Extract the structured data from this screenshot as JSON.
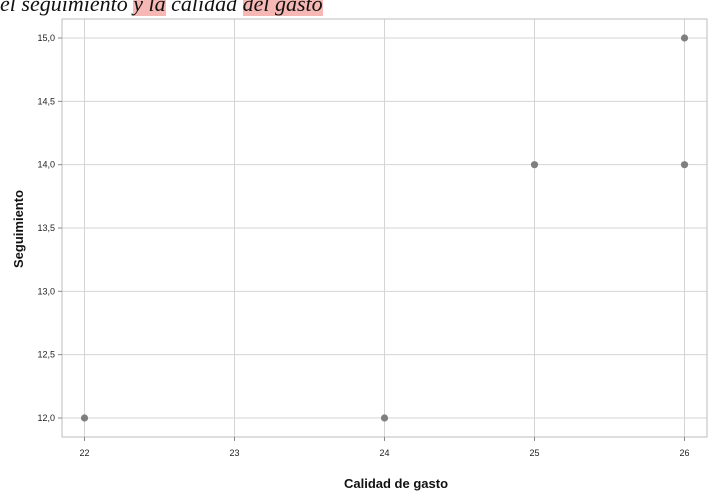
{
  "caption": {
    "part1": "el seguimiento ",
    "part2": "y la",
    "part3": " calidad ",
    "part4": "del gasto"
  },
  "chart_data": {
    "type": "scatter",
    "title": "",
    "xlabel": "Calidad de gasto",
    "ylabel": "Seguimiento",
    "xlim": [
      21.85,
      26.15
    ],
    "ylim": [
      11.85,
      15.15
    ],
    "x_ticks": [
      "22",
      "23",
      "24",
      "25",
      "26"
    ],
    "y_ticks": [
      "12,0",
      "12,5",
      "13,0",
      "13,5",
      "14,0",
      "14,5",
      "15,0"
    ],
    "x_tick_values": [
      22,
      23,
      24,
      25,
      26
    ],
    "y_tick_values": [
      12.0,
      12.5,
      13.0,
      13.5,
      14.0,
      14.5,
      15.0
    ],
    "grid": true,
    "point_color": "#7f7f7f",
    "grid_color": "#d4d4d4",
    "points": [
      {
        "x": 22,
        "y": 12.0
      },
      {
        "x": 24,
        "y": 12.0
      },
      {
        "x": 25,
        "y": 14.0
      },
      {
        "x": 26,
        "y": 14.0
      },
      {
        "x": 26,
        "y": 15.0
      }
    ]
  }
}
